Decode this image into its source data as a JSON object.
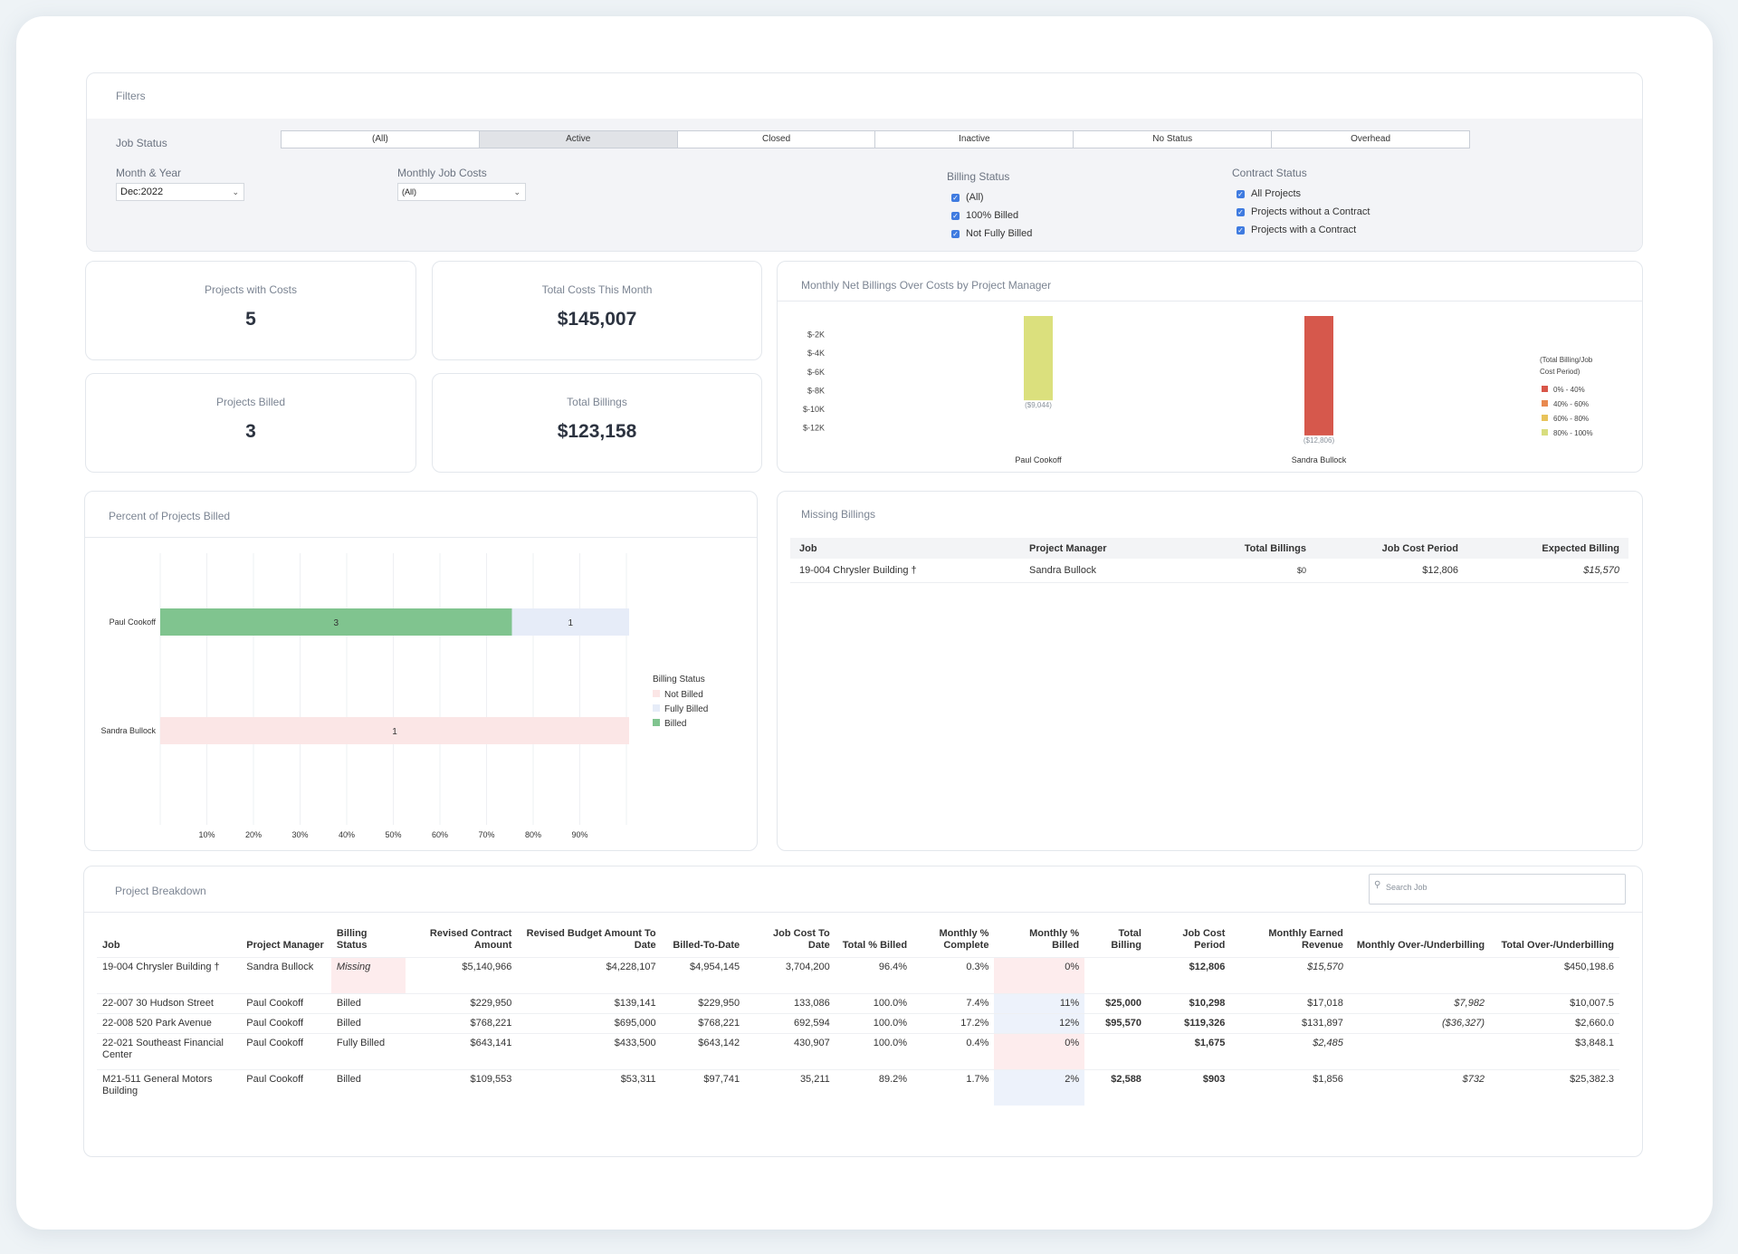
{
  "filters": {
    "title": "Filters",
    "job_status_label": "Job Status",
    "job_status_options": [
      "(All)",
      "Active",
      "Closed",
      "Inactive",
      "No Status",
      "Overhead"
    ],
    "month_year_label": "Month & Year",
    "month_year_value": "Dec:2022",
    "monthly_job_costs_label": "Monthly Job Costs",
    "monthly_job_costs_value": "(All)",
    "billing_status_label": "Billing Status",
    "billing_status_options": [
      "(All)",
      "100% Billed",
      "Not Fully Billed"
    ],
    "contract_status_label": "Contract Status",
    "contract_status_options": [
      "All Projects",
      "Projects without a Contract",
      "Projects with a Contract"
    ],
    "accent_color": "#3f7be0"
  },
  "kpis": {
    "projects_with_costs": {
      "label": "Projects with Costs",
      "value": "5"
    },
    "total_costs": {
      "label": "Total Costs This Month",
      "value": "$145,007"
    },
    "projects_billed": {
      "label": "Projects Billed",
      "value": "3"
    },
    "total_billings": {
      "label": "Total Billings",
      "value": "$123,158"
    }
  },
  "net_billings": {
    "title": "Monthly Net Billings Over Costs by Project Manager",
    "y_ticks": [
      "$-2K",
      "$-4K",
      "$-6K",
      "$-8K",
      "$-10K",
      "$-12K"
    ],
    "legend_title": "(Total Billing/Job Cost Period)",
    "legend": [
      {
        "label": "0% - 40%",
        "color": "#d95649"
      },
      {
        "label": "40% - 60%",
        "color": "#e8894f"
      },
      {
        "label": "60% - 80%",
        "color": "#e8c35b"
      },
      {
        "label": "80% - 100%",
        "color": "#d8dd7e"
      }
    ],
    "bars": [
      {
        "manager": "Paul Cookoff",
        "value": -9044,
        "label": "($9,044)",
        "color": "#dbe07d"
      },
      {
        "manager": "Sandra Bullock",
        "value": -12806,
        "label": "($12,806)",
        "color": "#d6584c"
      }
    ]
  },
  "percent_billed": {
    "title": "Percent of Projects Billed",
    "x_ticks": [
      "10%",
      "20%",
      "30%",
      "40%",
      "50%",
      "60%",
      "70%",
      "80%",
      "90%"
    ],
    "legend_title": "Billing Status",
    "legend": [
      {
        "label": "Not Billed",
        "color": "#fbe6e6"
      },
      {
        "label": "Fully Billed",
        "color": "#e6ecf8"
      },
      {
        "label": "Billed",
        "color": "#80c48f"
      }
    ],
    "rows": [
      {
        "manager": "Paul Cookoff",
        "segments": [
          {
            "status": "Billed",
            "count": 3,
            "color": "#80c48f"
          },
          {
            "status": "Fully Billed",
            "count": 1,
            "color": "#e6ecf8"
          }
        ]
      },
      {
        "manager": "Sandra Bullock",
        "segments": [
          {
            "status": "Not Billed",
            "count": 1,
            "color": "#fbe6e6"
          }
        ]
      }
    ]
  },
  "missing_billings": {
    "title": "Missing Billings",
    "columns": [
      "Job",
      "Project Manager",
      "Total Billings",
      "Job Cost Period",
      "Expected Billing"
    ],
    "rows": [
      {
        "job": "19-004 Chrysler Building †",
        "manager": "Sandra Bullock",
        "total_billings": "$0",
        "job_cost_period": "$12,806",
        "expected_billing": "$15,570"
      }
    ]
  },
  "breakdown": {
    "title": "Project Breakdown",
    "search_placeholder": "Search Job",
    "columns": [
      "Job",
      "Project Manager",
      "Billing Status",
      "Revised Contract Amount",
      "Revised Budget Amount To Date",
      "Billed-To-Date",
      "Job Cost To Date",
      "Total % Billed",
      "Monthly % Complete",
      "Monthly % Billed",
      "Total Billing",
      "Job Cost Period",
      "Monthly Earned Revenue",
      "Monthly Over-/Underbilling",
      "Total Over-/Underbilling"
    ],
    "rows": [
      {
        "job": "19-004 Chrysler Building †",
        "manager": "Sandra Bullock",
        "status": "Missing",
        "contract": "$5,140,966",
        "budget": "$4,228,107",
        "billed": "$4,954,145",
        "cost_to_date": "3,704,200",
        "total_pct": "96.4%",
        "monthly_complete": "0.3%",
        "monthly_billed": "0%",
        "total_billing": "",
        "job_cost_period": "$12,806",
        "earned_revenue": "$15,570",
        "monthly_over": "",
        "total_over": "$450,198.6"
      },
      {
        "job": "22-007 30 Hudson Street",
        "manager": "Paul Cookoff",
        "status": "Billed",
        "contract": "$229,950",
        "budget": "$139,141",
        "billed": "$229,950",
        "cost_to_date": "133,086",
        "total_pct": "100.0%",
        "monthly_complete": "7.4%",
        "monthly_billed": "11%",
        "total_billing": "$25,000",
        "job_cost_period": "$10,298",
        "earned_revenue": "$17,018",
        "monthly_over": "$7,982",
        "total_over": "$10,007.5"
      },
      {
        "job": "22-008 520 Park Avenue",
        "manager": "Paul Cookoff",
        "status": "Billed",
        "contract": "$768,221",
        "budget": "$695,000",
        "billed": "$768,221",
        "cost_to_date": "692,594",
        "total_pct": "100.0%",
        "monthly_complete": "17.2%",
        "monthly_billed": "12%",
        "total_billing": "$95,570",
        "job_cost_period": "$119,326",
        "earned_revenue": "$131,897",
        "monthly_over": "($36,327)",
        "total_over": "$2,660.0"
      },
      {
        "job": "22-021 Southeast Financial Center",
        "manager": "Paul Cookoff",
        "status": "Fully Billed",
        "contract": "$643,141",
        "budget": "$433,500",
        "billed": "$643,142",
        "cost_to_date": "430,907",
        "total_pct": "100.0%",
        "monthly_complete": "0.4%",
        "monthly_billed": "0%",
        "total_billing": "",
        "job_cost_period": "$1,675",
        "earned_revenue": "$2,485",
        "monthly_over": "",
        "total_over": "$3,848.1"
      },
      {
        "job": "M21-511 General Motors Building",
        "manager": "Paul Cookoff",
        "status": "Billed",
        "contract": "$109,553",
        "budget": "$53,311",
        "billed": "$97,741",
        "cost_to_date": "35,211",
        "total_pct": "89.2%",
        "monthly_complete": "1.7%",
        "monthly_billed": "2%",
        "total_billing": "$2,588",
        "job_cost_period": "$903",
        "earned_revenue": "$1,856",
        "monthly_over": "$732",
        "total_over": "$25,382.3"
      }
    ]
  }
}
